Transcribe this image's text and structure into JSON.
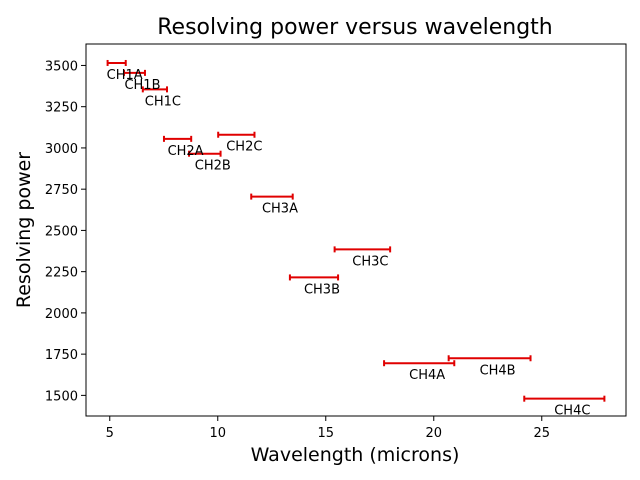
{
  "chart_data": {
    "type": "scatter",
    "title": "Resolving power versus wavelength",
    "xlabel": "Wavelength (microns)",
    "ylabel": "Resolving power",
    "xlim": [
      3.9,
      28.9
    ],
    "ylim": [
      1375,
      3630
    ],
    "xticks": [
      5,
      10,
      15,
      20,
      25
    ],
    "yticks": [
      1500,
      1750,
      2000,
      2250,
      2500,
      2750,
      3000,
      3250,
      3500
    ],
    "grid": false,
    "bar_color": "#e00000",
    "bands": [
      {
        "label": "CH1A",
        "x_start": 4.9,
        "x_end": 5.74,
        "resolving_power": 3515
      },
      {
        "label": "CH1B",
        "x_start": 5.66,
        "x_end": 6.63,
        "resolving_power": 3455
      },
      {
        "label": "CH1C",
        "x_start": 6.53,
        "x_end": 7.65,
        "resolving_power": 3355
      },
      {
        "label": "CH2A",
        "x_start": 7.51,
        "x_end": 8.77,
        "resolving_power": 3055
      },
      {
        "label": "CH2B",
        "x_start": 8.67,
        "x_end": 10.13,
        "resolving_power": 2965
      },
      {
        "label": "CH2C",
        "x_start": 10.02,
        "x_end": 11.7,
        "resolving_power": 3080
      },
      {
        "label": "CH3A",
        "x_start": 11.55,
        "x_end": 13.47,
        "resolving_power": 2705
      },
      {
        "label": "CH3B",
        "x_start": 13.34,
        "x_end": 15.57,
        "resolving_power": 2215
      },
      {
        "label": "CH3C",
        "x_start": 15.41,
        "x_end": 17.98,
        "resolving_power": 2385
      },
      {
        "label": "CH4A",
        "x_start": 17.7,
        "x_end": 20.95,
        "resolving_power": 1695
      },
      {
        "label": "CH4B",
        "x_start": 20.69,
        "x_end": 24.48,
        "resolving_power": 1725
      },
      {
        "label": "CH4C",
        "x_start": 24.19,
        "x_end": 27.9,
        "resolving_power": 1480
      }
    ]
  }
}
